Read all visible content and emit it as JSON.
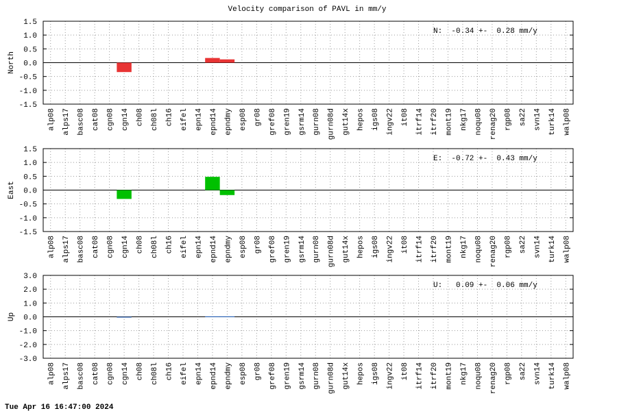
{
  "title": "Velocity comparison of PAVL in mm/y",
  "footer": "Tue Apr 16 16:47:00 2024",
  "chart_data": [
    {
      "type": "bar",
      "ylabel": "North",
      "annotation": "N:  -0.34 +-  0.28 mm/y",
      "color": "#e83434",
      "grid": true,
      "categories": [
        "alp08",
        "alps17",
        "basc08",
        "cat08",
        "cgn08",
        "cgn14",
        "ch08",
        "ch08l",
        "ch16",
        "eifel",
        "epn14",
        "epnd14",
        "epndmy",
        "esp08",
        "gr08",
        "gref08",
        "gren19",
        "gsrm14",
        "gurn08",
        "gurn08d",
        "gut14x",
        "hepos",
        "igs08",
        "ingv22",
        "it08",
        "itrf14",
        "itrf20",
        "mont19",
        "nkg17",
        "noqu08",
        "renag20",
        "rgp08",
        "sa22",
        "svn14",
        "turk14",
        "walp08"
      ],
      "values": [
        null,
        null,
        null,
        null,
        null,
        -0.34,
        null,
        null,
        null,
        null,
        null,
        0.17,
        0.12,
        null,
        null,
        null,
        null,
        null,
        null,
        null,
        null,
        null,
        null,
        null,
        null,
        null,
        null,
        null,
        null,
        null,
        null,
        null,
        null,
        null,
        null,
        null
      ],
      "ylim": [
        -1.5,
        1.5
      ],
      "yticks": [
        -1.5,
        {
          "value": -1,
          "label": "-1.0"
        },
        -0.5,
        {
          "value": 0,
          "label": "0.0"
        },
        0.5,
        {
          "value": 1,
          "label": "1.0"
        },
        1.5
      ]
    },
    {
      "type": "bar",
      "ylabel": "East",
      "annotation": "E:  -0.72 +-  0.43 mm/y",
      "color": "#00c000",
      "grid": true,
      "categories": [
        "alp08",
        "alps17",
        "basc08",
        "cat08",
        "cgn08",
        "cgn14",
        "ch08",
        "ch08l",
        "ch16",
        "eifel",
        "epn14",
        "epnd14",
        "epndmy",
        "esp08",
        "gr08",
        "gref08",
        "gren19",
        "gsrm14",
        "gurn08",
        "gurn08d",
        "gut14x",
        "hepos",
        "igs08",
        "ingv22",
        "it08",
        "itrf14",
        "itrf20",
        "mont19",
        "nkg17",
        "noqu08",
        "renag20",
        "rgp08",
        "sa22",
        "svn14",
        "turk14",
        "walp08"
      ],
      "values": [
        null,
        null,
        null,
        null,
        null,
        -0.32,
        null,
        null,
        null,
        null,
        null,
        0.48,
        -0.18,
        null,
        null,
        null,
        null,
        null,
        null,
        null,
        null,
        null,
        null,
        null,
        null,
        null,
        null,
        null,
        null,
        null,
        null,
        null,
        null,
        null,
        null,
        null
      ],
      "ylim": [
        -1.5,
        1.5
      ],
      "yticks": [
        -1.5,
        {
          "value": -1,
          "label": "-1.0"
        },
        -0.5,
        {
          "value": 0,
          "label": "0.0"
        },
        0.5,
        {
          "value": 1,
          "label": "1.0"
        },
        1.5
      ]
    },
    {
      "type": "bar",
      "ylabel": "Up",
      "annotation": "U:   0.09 +-  0.06 mm/y",
      "color": "#2060c0",
      "grid": true,
      "categories": [
        "alp08",
        "alps17",
        "basc08",
        "cat08",
        "cgn08",
        "cgn14",
        "ch08",
        "ch08l",
        "ch16",
        "eifel",
        "epn14",
        "epnd14",
        "epndmy",
        "esp08",
        "gr08",
        "gref08",
        "gren19",
        "gsrm14",
        "gurn08",
        "gurn08d",
        "gut14x",
        "hepos",
        "igs08",
        "ingv22",
        "it08",
        "itrf14",
        "itrf20",
        "mont19",
        "nkg17",
        "noqu08",
        "renag20",
        "rgp08",
        "sa22",
        "svn14",
        "turk14",
        "walp08"
      ],
      "values": [
        null,
        null,
        null,
        null,
        null,
        -0.05,
        null,
        null,
        null,
        null,
        null,
        0.03,
        0.03,
        null,
        null,
        null,
        null,
        null,
        null,
        null,
        null,
        null,
        null,
        null,
        null,
        null,
        null,
        null,
        null,
        null,
        null,
        null,
        null,
        null,
        null,
        null
      ],
      "ylim": [
        -3,
        3
      ],
      "yticks": [
        {
          "value": -3,
          "label": "-3.0"
        },
        {
          "value": -2,
          "label": "-2.0"
        },
        {
          "value": -1,
          "label": "-1.0"
        },
        {
          "value": 0,
          "label": "0.0"
        },
        {
          "value": 1,
          "label": "1.0"
        },
        {
          "value": 2,
          "label": "2.0"
        },
        {
          "value": 3,
          "label": "3.0"
        }
      ]
    }
  ]
}
